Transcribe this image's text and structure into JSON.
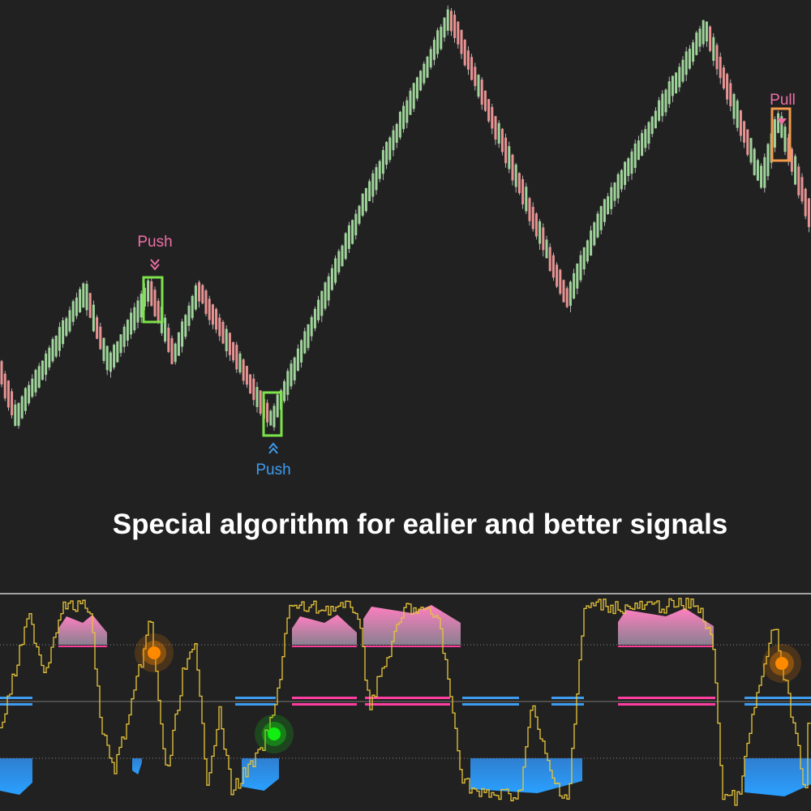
{
  "annotations": [
    {
      "text": "Push"
    },
    {
      "text": "Push"
    },
    {
      "text": "Pull"
    }
  ],
  "caption": "Special algorithm for ealier and better signals"
}
